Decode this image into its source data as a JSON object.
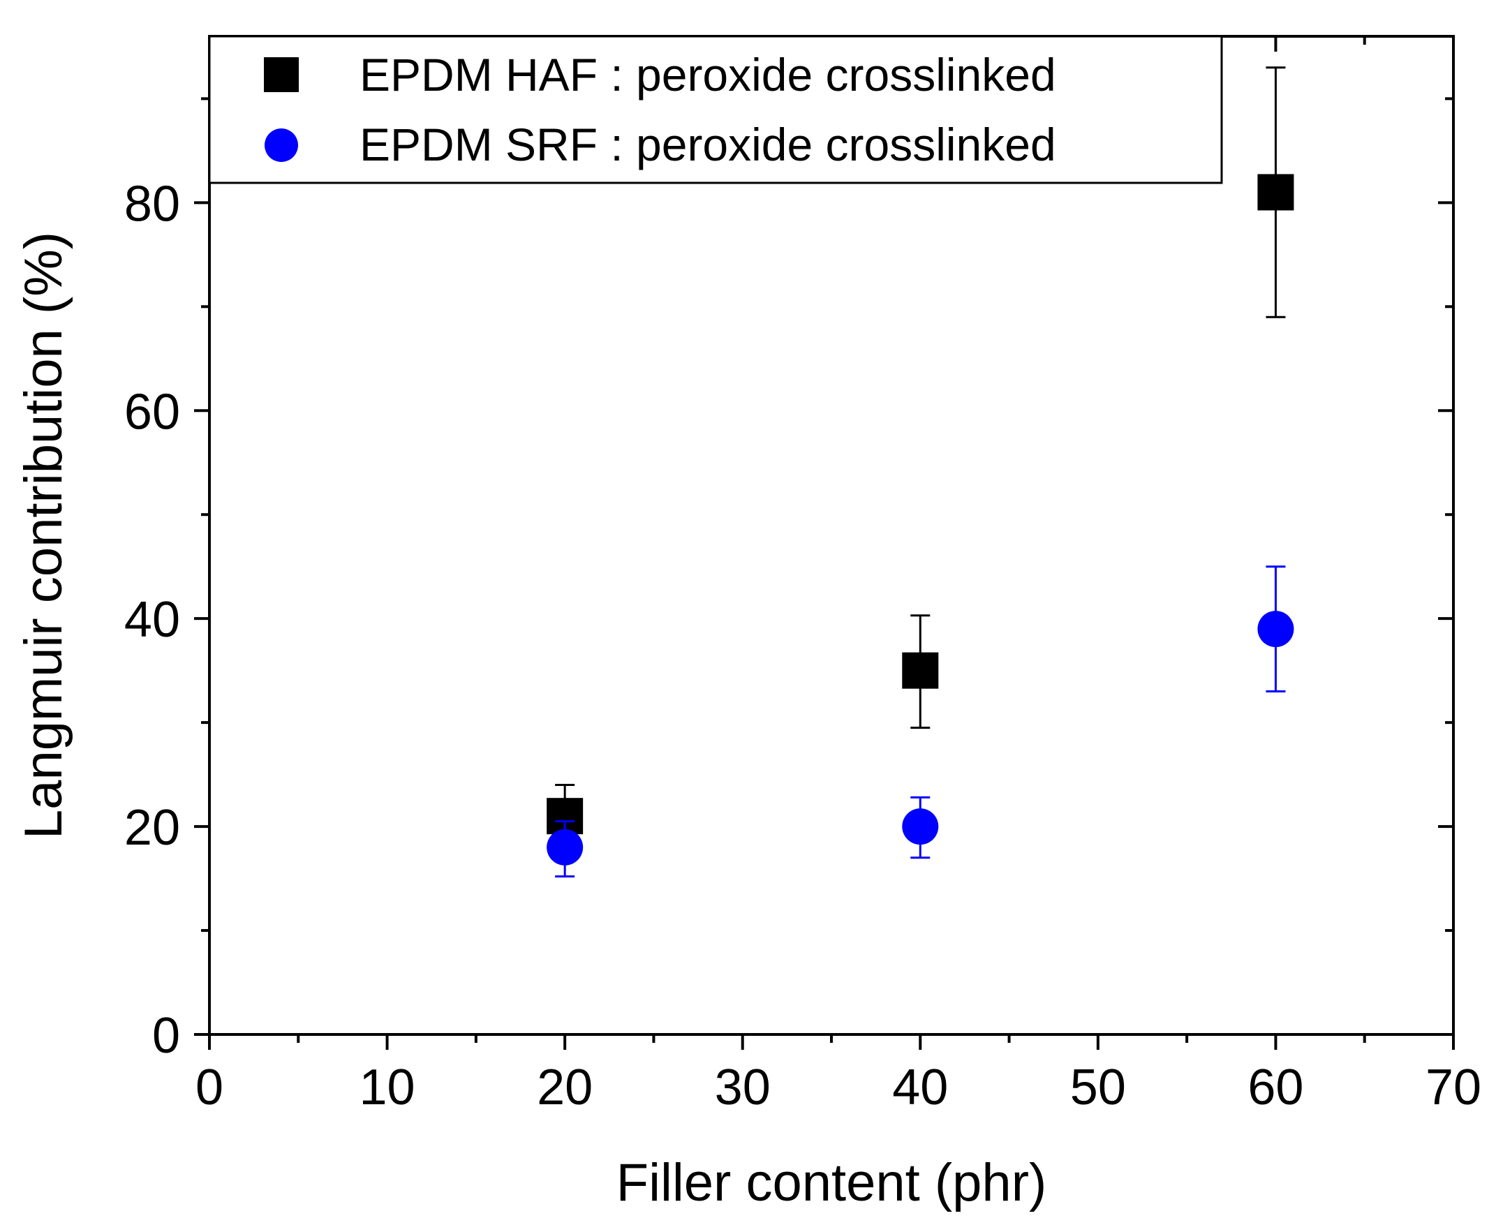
{
  "chart_data": {
    "type": "scatter",
    "title": "",
    "xlabel": "Filler content (phr)",
    "ylabel": "Langmuir contribution (%)",
    "xlim": [
      0,
      70
    ],
    "ylim": [
      0,
      96
    ],
    "x_ticks": [
      0,
      10,
      20,
      30,
      40,
      50,
      60,
      70
    ],
    "y_ticks": [
      0,
      20,
      40,
      60,
      80
    ],
    "x_tick_labels": [
      "0",
      "10",
      "20",
      "30",
      "40",
      "50",
      "60",
      "70"
    ],
    "y_tick_labels": [
      "0",
      "20",
      "40",
      "60",
      "80"
    ],
    "grid": false,
    "legend_position": "top-left",
    "series": [
      {
        "name": "EPDM HAF : peroxide crosslinked",
        "marker": "square",
        "color": "#000000",
        "x": [
          20,
          40,
          60
        ],
        "y": [
          21,
          35,
          81
        ],
        "y_err_low": [
          18,
          29.5,
          69
        ],
        "y_err_high": [
          24,
          40.3,
          93
        ]
      },
      {
        "name": "EPDM SRF : peroxide crosslinked",
        "marker": "circle",
        "color": "#0000ff",
        "x": [
          20,
          40,
          60
        ],
        "y": [
          18,
          20,
          39
        ],
        "y_err_low": [
          15.2,
          17,
          33
        ],
        "y_err_high": [
          20.5,
          22.8,
          45
        ]
      }
    ]
  }
}
